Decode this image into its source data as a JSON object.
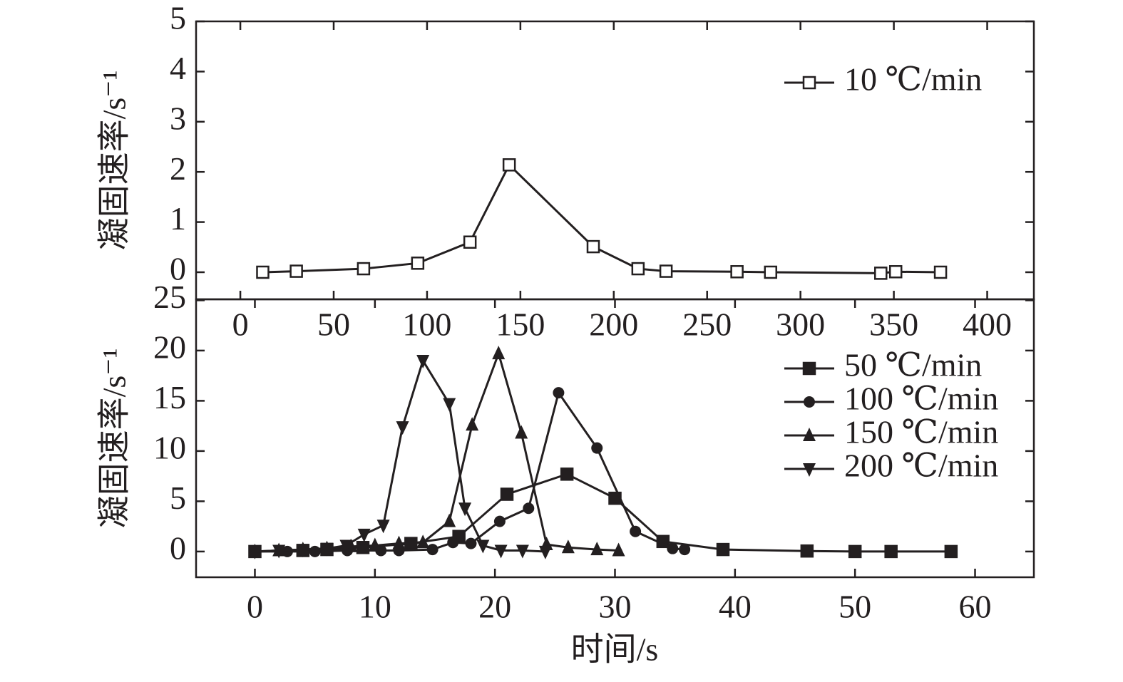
{
  "chart_data": [
    {
      "type": "line",
      "ylabel": "凝固速率/s⁻¹",
      "legend": "upper right",
      "xlim": [
        -23.7,
        425
      ],
      "ylim": [
        -0.54,
        5
      ],
      "xticks": [
        0,
        50,
        100,
        150,
        200,
        250,
        300,
        350,
        400
      ],
      "yticks": [
        0,
        1,
        2,
        3,
        4,
        5
      ],
      "x": [
        12,
        30,
        66,
        95,
        123,
        144,
        189,
        213,
        228,
        266,
        284,
        343,
        351,
        375
      ],
      "series": [
        {
          "name": "10 ℃/min",
          "color": "#231f20",
          "marker": "square-open",
          "values": [
            0,
            0.02,
            0.07,
            0.18,
            0.6,
            2.14,
            0.51,
            0.07,
            0.02,
            0.01,
            0,
            -0.02,
            0.01,
            0
          ]
        }
      ]
    },
    {
      "type": "line",
      "xlabel": "时间/s",
      "ylabel": "凝固速率/s⁻¹",
      "legend": "right",
      "xlim": [
        -4.9,
        64.9
      ],
      "ylim": [
        -2.56,
        25.1
      ],
      "xticks": [
        0,
        10,
        20,
        30,
        40,
        50,
        60
      ],
      "yticks": [
        0,
        5,
        10,
        15,
        20,
        25
      ],
      "series": [
        {
          "name": "50 ℃/min",
          "color": "#231f20",
          "marker": "square",
          "x": [
            0,
            4,
            6,
            9,
            13,
            17,
            21,
            26,
            30,
            34,
            39,
            46,
            50,
            53,
            58
          ],
          "values": [
            0,
            0.1,
            0.2,
            0.4,
            0.8,
            1.5,
            5.7,
            7.7,
            5.3,
            1.0,
            0.2,
            0.05,
            0,
            0,
            0
          ]
        },
        {
          "name": "100 ℃/min",
          "color": "#231f20",
          "marker": "circle",
          "x": [
            0,
            2.7,
            5,
            7.7,
            10.5,
            12,
            14.8,
            16.5,
            18,
            20.4,
            22.8,
            25.3,
            28.5,
            31.7,
            34.8,
            35.8
          ],
          "values": [
            0,
            0,
            0,
            0.1,
            0.1,
            0.1,
            0.2,
            0.9,
            0.8,
            3.0,
            4.3,
            15.8,
            10.3,
            2.0,
            0.3,
            0.2
          ]
        },
        {
          "name": "150 ℃/min",
          "color": "#231f20",
          "marker": "triangle-up",
          "x": [
            0,
            2,
            4,
            6,
            8,
            10,
            12,
            14,
            16.2,
            18.1,
            20.3,
            22.2,
            24.3,
            26.1,
            28.5,
            30.3
          ],
          "values": [
            0,
            0.1,
            0.2,
            0.3,
            0.5,
            0.6,
            0.8,
            0.9,
            3.0,
            12.6,
            19.7,
            11.8,
            0.7,
            0.4,
            0.2,
            0.1
          ]
        },
        {
          "name": "200 ℃/min",
          "color": "#231f20",
          "marker": "triangle-down",
          "x": [
            0,
            2,
            4,
            6,
            7.6,
            9.1,
            10.7,
            12.3,
            14.0,
            16.2,
            17.5,
            19.0,
            20.5,
            22.3,
            24.2
          ],
          "values": [
            0,
            0.1,
            0.2,
            0.3,
            0.6,
            1.7,
            2.6,
            12.4,
            19.0,
            14.7,
            4.3,
            0.6,
            0.1,
            0.1,
            0
          ]
        }
      ]
    }
  ]
}
